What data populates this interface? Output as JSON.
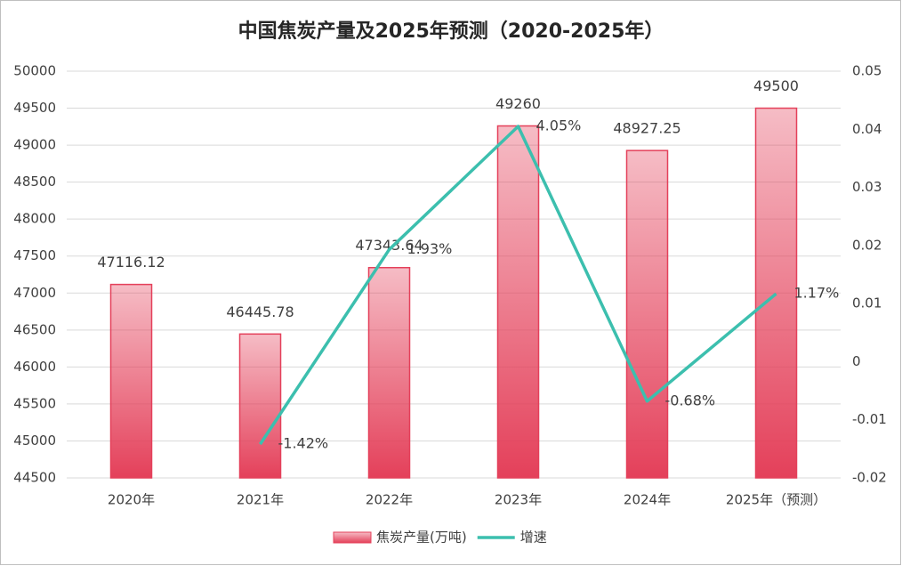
{
  "chart_data": {
    "type": "bar-line",
    "title": "中国焦炭产量及2025年预测（2020-2025年）",
    "categories": [
      "2020年",
      "2021年",
      "2022年",
      "2023年",
      "2024年",
      "2025年（预测）"
    ],
    "series": [
      {
        "name": "焦炭产量(万吨)",
        "type": "bar",
        "color": "#e4405a",
        "values": [
          47116.12,
          46445.78,
          47343.64,
          49260,
          48927.25,
          49500
        ]
      },
      {
        "name": "增速",
        "type": "line",
        "axis": "y2",
        "color": "#3cbfae",
        "values": [
          null,
          -0.0142,
          0.0193,
          0.0405,
          -0.0068,
          0.0117
        ],
        "value_labels": [
          null,
          "-1.42%",
          "1.93%",
          "4.05%",
          "-0.68%",
          "1.17%"
        ]
      }
    ],
    "ylim": [
      44500,
      50000
    ],
    "yticks": [
      44500,
      45000,
      45500,
      46000,
      46500,
      47000,
      47500,
      48000,
      48500,
      49000,
      49500,
      50000
    ],
    "y2lim": [
      -0.02,
      0.05
    ],
    "y2ticks": [
      -0.02,
      -0.01,
      0,
      0.01,
      0.02,
      0.03,
      0.04,
      0.05
    ],
    "grid": true,
    "legend": "bottom"
  }
}
